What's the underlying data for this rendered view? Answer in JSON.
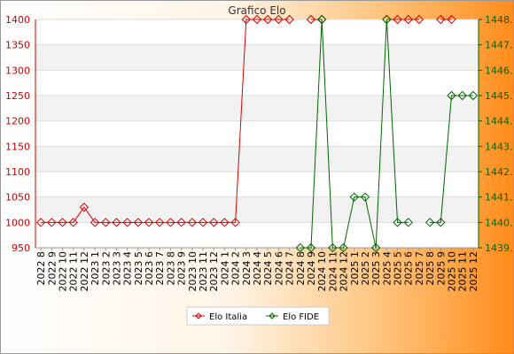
{
  "chart_data": {
    "type": "line",
    "title": "Grafico Elo",
    "categories": [
      "2022 8",
      "2022 9",
      "2022 10",
      "2022 11",
      "2022 12",
      "2023 1",
      "2023 2",
      "2023 3",
      "2023 4",
      "2023 5",
      "2023 6",
      "2023 7",
      "2023 8",
      "2023 9",
      "2023 10",
      "2023 11",
      "2023 12",
      "2024 1",
      "2024 2",
      "2024 3",
      "2024 4",
      "2024 5",
      "2024 6",
      "2024 7",
      "2024 8",
      "2024 9",
      "2024 10",
      "2024 11",
      "2024 12",
      "2025 1",
      "2025 2",
      "2025 3",
      "2025 4",
      "2025 5",
      "2025 6",
      "2025 7",
      "2025 8",
      "2025 9",
      "2025 10",
      "2025 11",
      "2025 12"
    ],
    "y_left": {
      "ylim": [
        950,
        1400
      ],
      "ticks": [
        "950",
        "1000",
        "1050",
        "1100",
        "1150",
        "1200",
        "1250",
        "1300",
        "1350",
        "1400"
      ]
    },
    "y_right": {
      "ylim": [
        1439,
        1448
      ],
      "ticks": [
        "1439.",
        "1440.",
        "1441.",
        "1442.",
        "1443.",
        "1444.",
        "1445.",
        "1446.",
        "1447.",
        "1448."
      ]
    },
    "series": [
      {
        "name": "Elo Italia",
        "axis": "left",
        "color": "#dd0000",
        "values": [
          1000,
          1000,
          1000,
          1000,
          1030,
          1000,
          1000,
          1000,
          1000,
          1000,
          1000,
          1000,
          1000,
          1000,
          1000,
          1000,
          1000,
          1000,
          1000,
          1400,
          1400,
          1400,
          1400,
          1400,
          null,
          1400,
          1400,
          null,
          null,
          null,
          null,
          null,
          1400,
          1400,
          1400,
          1400,
          null,
          1400,
          1400,
          null,
          null
        ]
      },
      {
        "name": "Elo FIDE",
        "axis": "right",
        "color": "#006600",
        "values": [
          null,
          null,
          null,
          null,
          null,
          null,
          null,
          null,
          null,
          null,
          null,
          null,
          null,
          null,
          null,
          null,
          null,
          null,
          null,
          null,
          null,
          null,
          null,
          null,
          1439,
          1439,
          1448,
          1439,
          1439,
          1441,
          1441,
          1439,
          1448,
          1440,
          1440,
          null,
          1440,
          1440,
          1445,
          1445,
          1445
        ]
      }
    ],
    "legend_position": "bottom-center",
    "grid": true
  }
}
